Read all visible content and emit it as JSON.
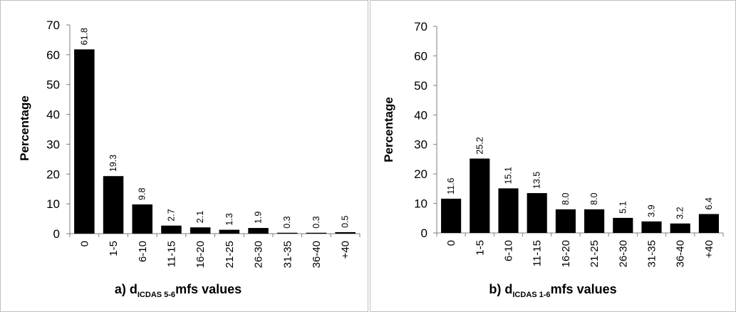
{
  "chart_data": [
    {
      "type": "bar",
      "title": "",
      "xlabel_prefix": "a) d",
      "xlabel_subscript": "ICDAS 5-6",
      "xlabel_suffix": "mfs values",
      "ylabel": "Percentage",
      "ylim": [
        0,
        70
      ],
      "yticks": [
        0,
        10,
        20,
        30,
        40,
        50,
        60,
        70
      ],
      "categories": [
        "0",
        "1-5",
        "6-10",
        "11-15",
        "16-20",
        "21-25",
        "26-30",
        "31-35",
        "36-40",
        "+40"
      ],
      "values": [
        61.8,
        19.3,
        9.8,
        2.7,
        2.1,
        1.3,
        1.9,
        0.3,
        0.3,
        0.5
      ],
      "value_labels": [
        "61.8",
        "19.3",
        "9.8",
        "2.7",
        "2.1",
        "1.3",
        "1.9",
        "0.3",
        "0.3",
        "0.5"
      ],
      "bar_color": "#000000",
      "grid": false,
      "legend": "none"
    },
    {
      "type": "bar",
      "title": "",
      "xlabel_prefix": "b) d",
      "xlabel_subscript": "ICDAS 1-6",
      "xlabel_suffix": "mfs values",
      "ylabel": "Percentage",
      "ylim": [
        0,
        70
      ],
      "yticks": [
        0,
        10,
        20,
        30,
        40,
        50,
        60,
        70
      ],
      "categories": [
        "0",
        "1-5",
        "6-10",
        "11-15",
        "16-20",
        "21-25",
        "26-30",
        "31-35",
        "36-40",
        "+40"
      ],
      "values": [
        11.6,
        25.2,
        15.1,
        13.5,
        8.0,
        8.0,
        5.1,
        3.9,
        3.2,
        6.4
      ],
      "value_labels": [
        "11.6",
        "25.2",
        "15.1",
        "13.5",
        "8.0",
        "8.0",
        "5.1",
        "3.9",
        "3.2",
        "6.4"
      ],
      "bar_color": "#000000",
      "grid": false,
      "legend": "none"
    }
  ]
}
